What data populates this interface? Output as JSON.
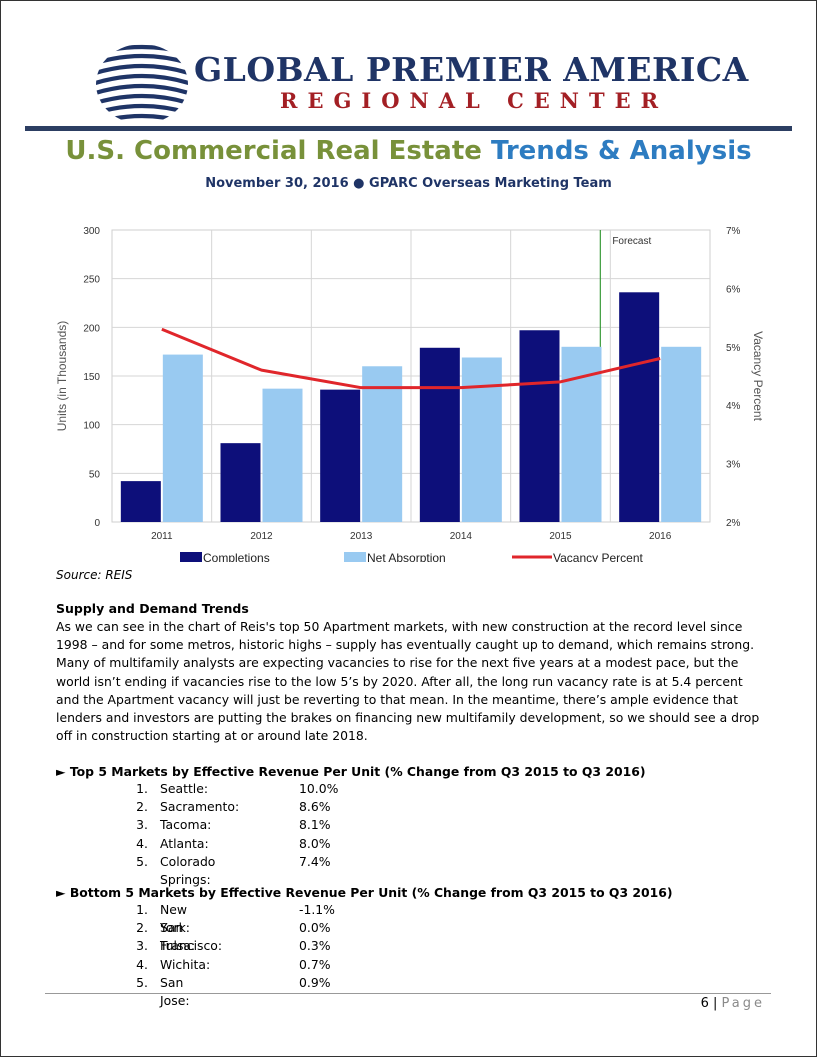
{
  "header": {
    "brand_line1": "GLOBAL PREMIER AMERICA",
    "brand_line2": "REGIONAL CENTER",
    "logo_icon": "striped-globe-icon",
    "colors": {
      "navy": "#1f3466",
      "red": "#a31f24"
    }
  },
  "title": {
    "part1": "U.S. Commercial Real Estate",
    "part2": "Trends & Analysis",
    "part1_color": "#78913a",
    "part2_color": "#2d7cc1"
  },
  "subtitle": "November 30, 2016 ● GPARC Overseas Marketing Team",
  "chart_data": {
    "type": "bar",
    "categories": [
      "2011",
      "2012",
      "2013",
      "2014",
      "2015",
      "2016"
    ],
    "series": [
      {
        "name": "Completions",
        "type": "bar",
        "axis": "left",
        "color": "#0d0f7a",
        "values": [
          42,
          81,
          136,
          179,
          197,
          236
        ]
      },
      {
        "name": "Net Absorption",
        "type": "bar",
        "axis": "left",
        "color": "#99caf1",
        "values": [
          172,
          137,
          160,
          169,
          180,
          180
        ]
      },
      {
        "name": "Vacancy Percent",
        "type": "line",
        "axis": "right",
        "color": "#e0262b",
        "values": [
          5.3,
          4.6,
          4.3,
          4.3,
          4.4,
          4.8
        ]
      }
    ],
    "ylabel": "Units (in Thousands)",
    "y2label": "Vacancy Percent",
    "ylim": [
      0,
      300
    ],
    "y2lim": [
      2,
      7
    ],
    "yticks": [
      "0",
      "50",
      "100",
      "150",
      "200",
      "250",
      "300"
    ],
    "y2ticks": [
      "2%",
      "3%",
      "4%",
      "5%",
      "6%",
      "7%"
    ],
    "grid": true,
    "forecast_label": "Forecast",
    "forecast_start_category": "2016",
    "legend": [
      "Completions",
      "Net Absorption",
      "Vacancy Percent"
    ],
    "legend_position": "bottom"
  },
  "source": "Source: REIS",
  "section": {
    "heading": "Supply and Demand Trends",
    "paragraph": "As we can see in the chart of Reis's top 50 Apartment markets, with new construction at the record level since 1998 – and for some metros, historic highs – supply has eventually caught up to demand, which remains strong.  Many of multifamily analysts are expecting vacancies to rise for the next five years at a modest pace, but the world isn’t ending if vacancies rise to the low 5’s by 2020.  After all, the long run vacancy rate is at 5.4 percent and the Apartment vacancy will just be reverting to that mean.  In the meantime, there’s ample evidence that lenders and investors are putting the brakes on financing new multifamily development, so we should see a drop off in construction starting at or around late 2018."
  },
  "top_markets": {
    "heading": "► Top 5 Markets by Effective Revenue Per Unit (% Change from Q3 2015 to Q3 2016)",
    "items": [
      {
        "num": "1.",
        "city": "Seattle:",
        "value": "10.0%"
      },
      {
        "num": "2.",
        "city": "Sacramento:",
        "value": "8.6%"
      },
      {
        "num": "3.",
        "city": "Tacoma:",
        "value": "8.1%"
      },
      {
        "num": "4.",
        "city": "Atlanta:",
        "value": "8.0%"
      },
      {
        "num": "5.",
        "city": "Colorado Springs:",
        "value": "7.4%"
      }
    ]
  },
  "bottom_markets": {
    "heading": "► Bottom 5 Markets by Effective Revenue Per Unit (% Change from Q3 2015 to Q3 2016)",
    "items": [
      {
        "num": "1.",
        "city": "New York:",
        "value": "-1.1%"
      },
      {
        "num": "2.",
        "city": "San Francisco:",
        "value": "0.0%"
      },
      {
        "num": "3.",
        "city": "Tulsa:",
        "value": "0.3%"
      },
      {
        "num": "4.",
        "city": "Wichita:",
        "value": "0.7%"
      },
      {
        "num": "5.",
        "city": "San Jose:",
        "value": "0.9%"
      }
    ]
  },
  "footer": {
    "page_number": "6",
    "separator": "|",
    "page_label": "Page"
  }
}
